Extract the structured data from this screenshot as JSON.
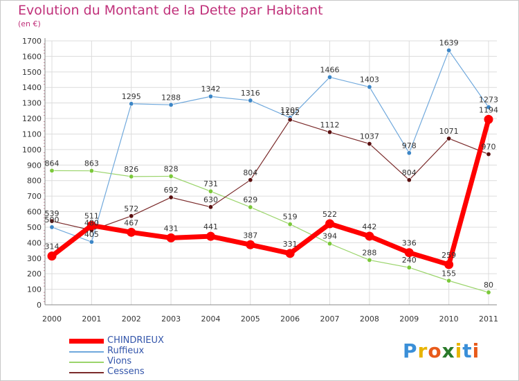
{
  "header": {
    "title": "Evolution du Montant de la Dette par Habitant",
    "unit": "(en €)"
  },
  "logo": {
    "text": "Proxiti",
    "letter_colors": [
      "#3a8fd8",
      "#e8b400",
      "#e85a1a",
      "#2a7a2a",
      "#e8b400",
      "#3a8fd8",
      "#e85a1a"
    ]
  },
  "colors": {
    "CHINDRIEUX": "#ff0000",
    "Ruffieux": "#6fa8dc",
    "Vions": "#9ad46a",
    "Cessens": "#7a2a2a",
    "marker_Ruffieux": "#3d86c6",
    "marker_Vions": "#7bc83a",
    "marker_Cessens": "#5a1010",
    "title": "#c0307a",
    "legend_text": "#3355aa"
  },
  "chart_data": {
    "type": "line",
    "x": [
      "2000",
      "2001",
      "2002",
      "2003",
      "2004",
      "2005",
      "2006",
      "2007",
      "2008",
      "2009",
      "2010",
      "2011"
    ],
    "ylim": [
      0,
      1700
    ],
    "yticks": [
      0,
      100,
      200,
      300,
      400,
      500,
      600,
      700,
      800,
      900,
      1000,
      1100,
      1200,
      1300,
      1400,
      1500,
      1600,
      1700
    ],
    "grid": true,
    "legend_position": "bottom-left",
    "series": [
      {
        "name": "CHINDRIEUX",
        "values": [
          314,
          511,
          467,
          431,
          441,
          387,
          331,
          522,
          442,
          336,
          259,
          1194
        ]
      },
      {
        "name": "Ruffieux",
        "values": [
          500,
          405,
          1295,
          1288,
          1342,
          1316,
          1205,
          1466,
          1403,
          978,
          1639,
          1273
        ]
      },
      {
        "name": "Vions",
        "values": [
          864,
          863,
          826,
          828,
          731,
          629,
          519,
          394,
          288,
          240,
          155,
          80
        ]
      },
      {
        "name": "Cessens",
        "values": [
          539,
          480,
          572,
          692,
          630,
          804,
          1192,
          1112,
          1037,
          804,
          1071,
          970
        ]
      }
    ]
  }
}
